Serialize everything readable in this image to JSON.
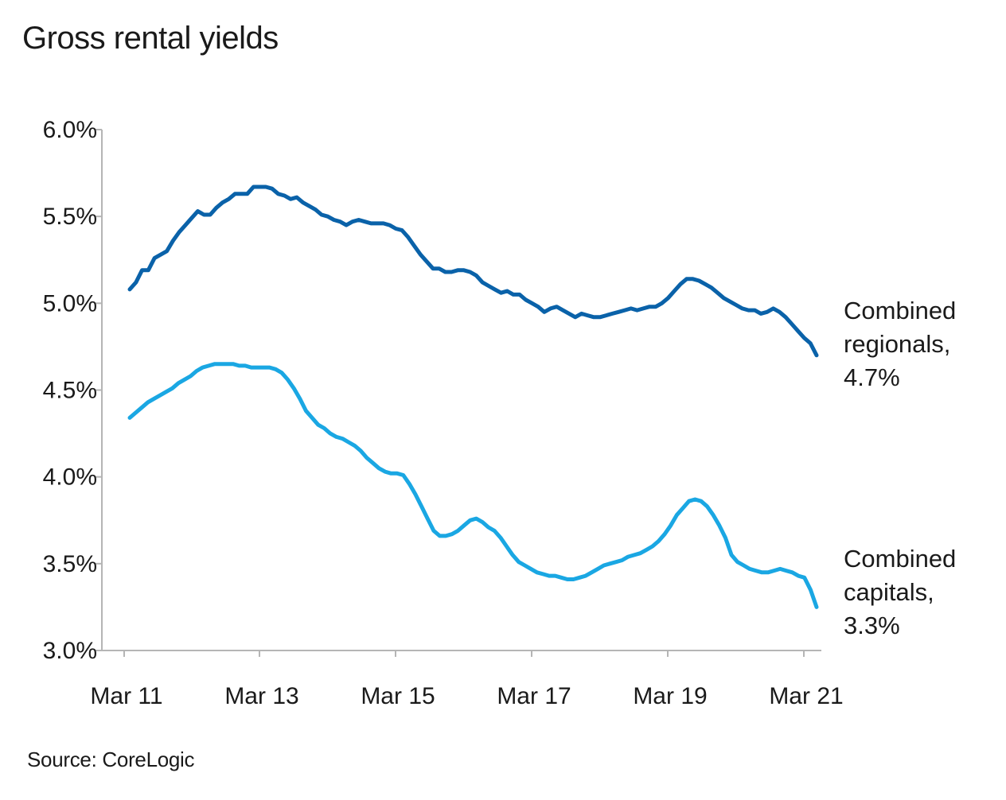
{
  "chart_data": {
    "type": "line",
    "title": "Gross rental yields",
    "source": "Source: CoreLogic",
    "xlabel": "",
    "ylabel": "",
    "x_start": "Mar 11",
    "x_end": "Mar 21",
    "x_ticks": [
      "Mar 11",
      "Mar 13",
      "Mar 15",
      "Mar 17",
      "Mar 19",
      "Mar 21"
    ],
    "y_ticks": [
      "3.0%",
      "3.5%",
      "4.0%",
      "4.5%",
      "5.0%",
      "5.5%",
      "6.0%"
    ],
    "ylim": [
      3.0,
      6.0
    ],
    "grid": false,
    "legend": "inline-right",
    "series": [
      {
        "name": "Combined regionals,",
        "end_label": "4.7%",
        "color": "#0a62a9",
        "values": [
          5.08,
          5.12,
          5.19,
          5.19,
          5.26,
          5.28,
          5.3,
          5.36,
          5.41,
          5.45,
          5.49,
          5.53,
          5.51,
          5.51,
          5.55,
          5.58,
          5.6,
          5.63,
          5.63,
          5.63,
          5.67,
          5.67,
          5.67,
          5.66,
          5.63,
          5.62,
          5.6,
          5.61,
          5.58,
          5.56,
          5.54,
          5.51,
          5.5,
          5.48,
          5.47,
          5.45,
          5.47,
          5.48,
          5.47,
          5.46,
          5.46,
          5.46,
          5.45,
          5.43,
          5.42,
          5.38,
          5.33,
          5.28,
          5.24,
          5.2,
          5.2,
          5.18,
          5.18,
          5.19,
          5.19,
          5.18,
          5.16,
          5.12,
          5.1,
          5.08,
          5.06,
          5.07,
          5.05,
          5.05,
          5.02,
          5.0,
          4.98,
          4.95,
          4.97,
          4.98,
          4.96,
          4.94,
          4.92,
          4.94,
          4.93,
          4.92,
          4.92,
          4.93,
          4.94,
          4.95,
          4.96,
          4.97,
          4.96,
          4.97,
          4.98,
          4.98,
          5.0,
          5.03,
          5.07,
          5.11,
          5.14,
          5.14,
          5.13,
          5.11,
          5.09,
          5.06,
          5.03,
          5.01,
          4.99,
          4.97,
          4.96,
          4.96,
          4.94,
          4.95,
          4.97,
          4.95,
          4.92,
          4.88,
          4.84,
          4.8,
          4.77,
          4.7
        ]
      },
      {
        "name": "Combined capitals,",
        "end_label": "3.3%",
        "color": "#1aa7e3",
        "values": [
          4.34,
          4.37,
          4.4,
          4.43,
          4.45,
          4.47,
          4.49,
          4.51,
          4.54,
          4.56,
          4.58,
          4.61,
          4.63,
          4.64,
          4.65,
          4.65,
          4.65,
          4.65,
          4.64,
          4.64,
          4.63,
          4.63,
          4.63,
          4.63,
          4.62,
          4.6,
          4.56,
          4.51,
          4.45,
          4.38,
          4.34,
          4.3,
          4.28,
          4.25,
          4.23,
          4.22,
          4.2,
          4.18,
          4.15,
          4.11,
          4.08,
          4.05,
          4.03,
          4.02,
          4.02,
          4.01,
          3.96,
          3.9,
          3.83,
          3.76,
          3.69,
          3.66,
          3.66,
          3.67,
          3.69,
          3.72,
          3.75,
          3.76,
          3.74,
          3.71,
          3.69,
          3.65,
          3.6,
          3.55,
          3.51,
          3.49,
          3.47,
          3.45,
          3.44,
          3.43,
          3.43,
          3.42,
          3.41,
          3.41,
          3.42,
          3.43,
          3.45,
          3.47,
          3.49,
          3.5,
          3.51,
          3.52,
          3.54,
          3.55,
          3.56,
          3.58,
          3.6,
          3.63,
          3.67,
          3.72,
          3.78,
          3.82,
          3.86,
          3.87,
          3.86,
          3.83,
          3.78,
          3.72,
          3.65,
          3.55,
          3.51,
          3.49,
          3.47,
          3.46,
          3.45,
          3.45,
          3.46,
          3.47,
          3.46,
          3.45,
          3.43,
          3.42,
          3.35,
          3.25
        ]
      }
    ]
  }
}
